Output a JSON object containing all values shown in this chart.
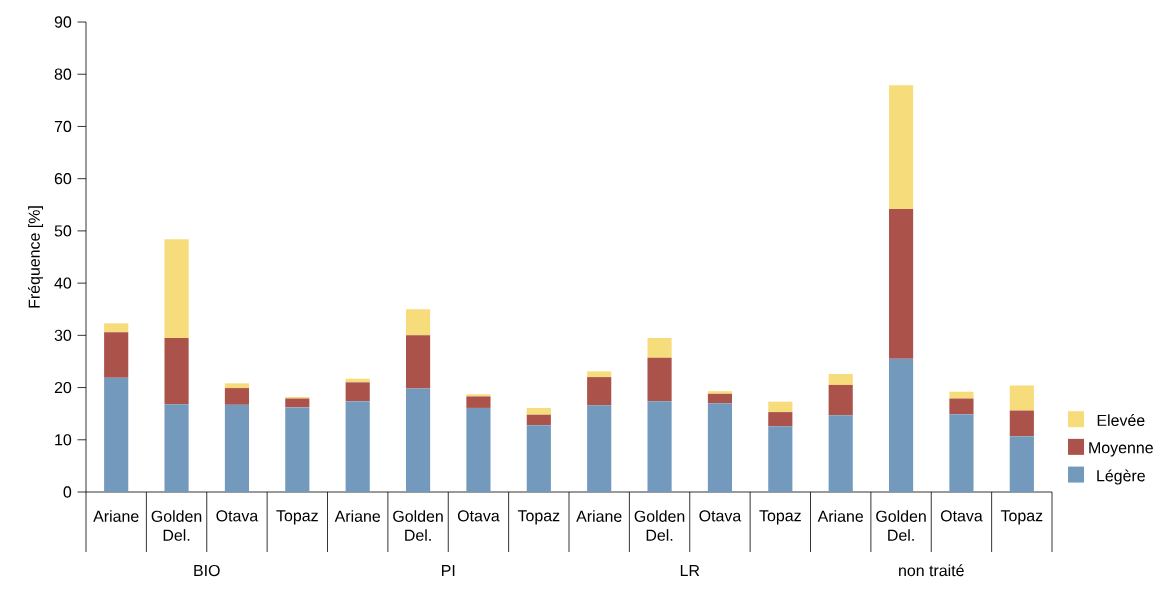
{
  "chart_data": {
    "type": "bar",
    "stacked": true,
    "ylabel": "Fréquence [%]",
    "categories": [
      "Ariane",
      "Golden Del.",
      "Otava",
      "Topaz",
      "Ariane",
      "Golden Del.",
      "Otava",
      "Topaz",
      "Ariane",
      "Golden Del.",
      "Otava",
      "Topaz",
      "Ariane",
      "Golden Del.",
      "Otava",
      "Topaz"
    ],
    "series": [
      {
        "name": "Légère",
        "color": "#7399bd",
        "values": [
          21.9,
          16.8,
          16.7,
          16.2,
          17.4,
          19.8,
          16.1,
          12.8,
          16.6,
          17.4,
          17.0,
          12.6,
          14.7,
          25.5,
          14.9,
          10.7
        ]
      },
      {
        "name": "Moyenne",
        "color": "#ab524b",
        "values": [
          8.7,
          12.7,
          3.2,
          1.7,
          3.6,
          10.2,
          2.2,
          2.0,
          5.4,
          8.3,
          1.8,
          2.7,
          5.8,
          28.7,
          3.0,
          4.9
        ]
      },
      {
        "name": "Elevée",
        "color": "#f7dc7c",
        "values": [
          1.7,
          18.9,
          0.9,
          0.3,
          0.7,
          5.0,
          0.4,
          1.3,
          1.1,
          3.8,
          0.5,
          2.0,
          2.1,
          23.7,
          1.3,
          4.8
        ]
      }
    ],
    "ylim": [
      0,
      90
    ],
    "yticks": [
      0,
      10,
      20,
      30,
      40,
      50,
      60,
      70,
      80,
      90
    ],
    "legend": "right",
    "annotations": [
      "BIO",
      "PI",
      "LR",
      "non traité"
    ]
  }
}
